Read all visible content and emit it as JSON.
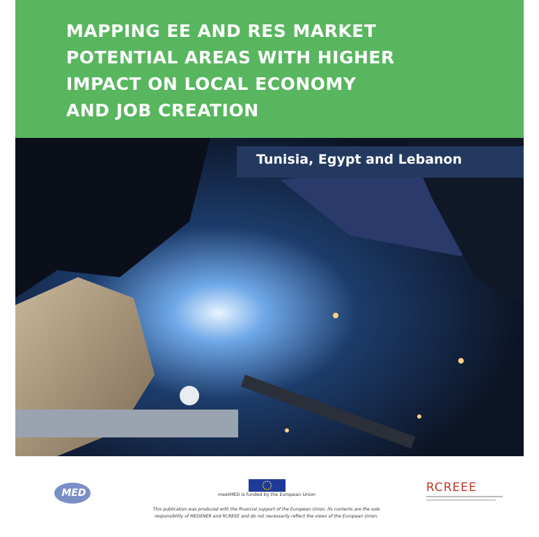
{
  "cover": {
    "title_lines": [
      "MAPPING EE AND RES MARKET",
      "POTENTIAL AREAS WITH HIGHER",
      "IMPACT ON LOCAL ECONOMY",
      "AND JOB CREATION"
    ],
    "subtitle": "Tunisia, Egypt and Lebanon",
    "logos": {
      "left": "MED",
      "right": "RCREEE"
    },
    "funding": "meetMED is funded by the European Union",
    "disclaimer_lines": [
      "This publication was produced with the financial support of the European Union. Its contents are the sole",
      "responsibility of MEDENER and RCREEE and do not necessarily reflect the views of the European Union."
    ]
  }
}
